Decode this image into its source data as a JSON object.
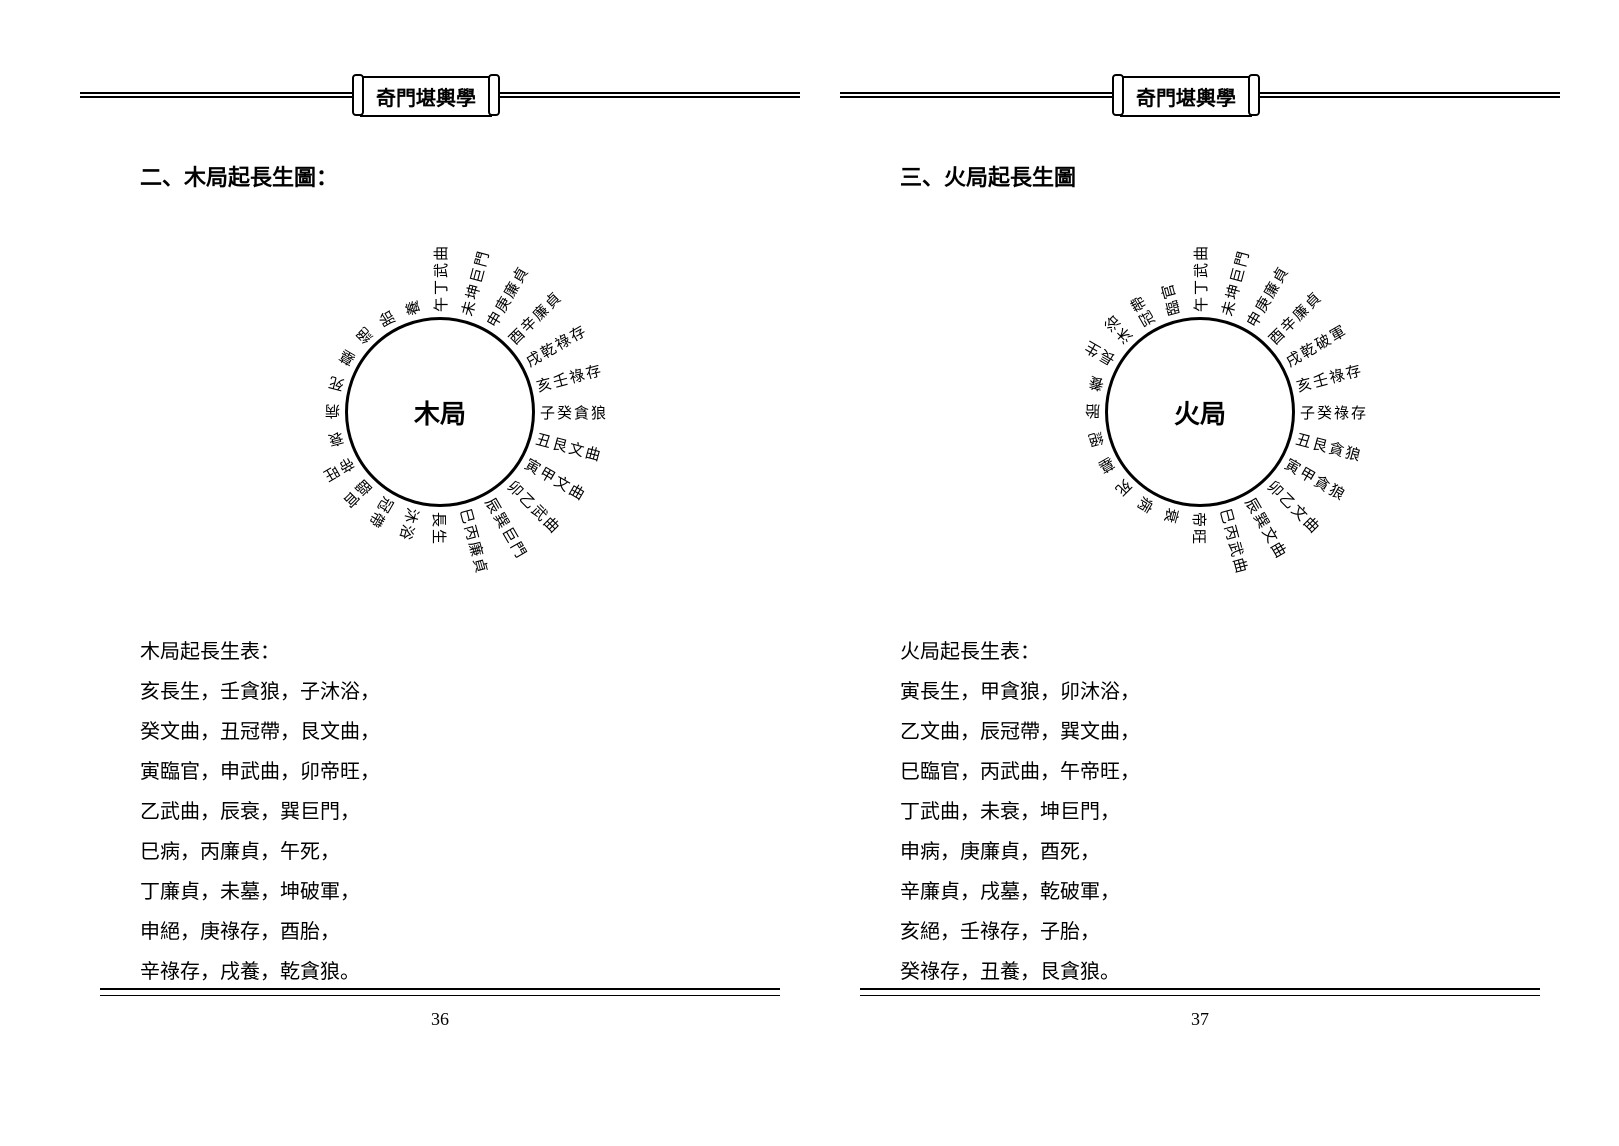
{
  "book_title": "奇門堪輿學",
  "left": {
    "section_title": "二、木局起長生圖：",
    "center_label": "木局",
    "page_number": "36",
    "spokes": [
      "午丁武曲",
      "未坤巨門",
      "申庚廉貞",
      "酉辛廉貞",
      "戌乾祿存",
      "亥壬祿存",
      "子癸貪狼",
      "丑艮文曲",
      "寅甲文曲",
      "卯乙武曲",
      "辰巽巨門",
      "巳丙廉貞",
      "長生",
      "沐浴",
      "冠帶",
      "臨官",
      "帝旺",
      "衰",
      "病",
      "死",
      "墓",
      "絕",
      "胎",
      "養"
    ],
    "table_title": "木局起長生表：",
    "table_lines": [
      "亥長生，壬貪狼，子沐浴，",
      "癸文曲，丑冠帶，艮文曲，",
      "寅臨官，申武曲，卯帝旺，",
      "乙武曲，辰衰，巽巨門，",
      "巳病，丙廉貞，午死，",
      "丁廉貞，未墓，坤破軍，",
      "申絕，庚祿存，酉胎，",
      "辛祿存，戌養，乾貪狼。"
    ]
  },
  "right": {
    "section_title": "三、火局起長生圖",
    "center_label": "火局",
    "page_number": "37",
    "spokes": [
      "午丁武曲",
      "未坤巨門",
      "申庚廉貞",
      "酉辛廉貞",
      "戌乾破軍",
      "亥壬祿存",
      "子癸祿存",
      "丑艮貪狼",
      "寅甲貪狼",
      "卯乙文曲",
      "辰巽文曲",
      "巳丙武曲",
      "帝旺",
      "衰",
      "病",
      "死",
      "墓",
      "絕",
      "胎",
      "養",
      "長生",
      "沐浴",
      "冠帶",
      "臨官"
    ],
    "table_title": "火局起長生表：",
    "table_lines": [
      "寅長生，甲貪狼，卯沐浴，",
      "乙文曲，辰冠帶，巽文曲，",
      "巳臨官，丙武曲，午帝旺，",
      "丁武曲，未衰，坤巨門，",
      "申病，庚廉貞，酉死，",
      "辛廉貞，戌墓，乾破軍，",
      "亥絕，壬祿存，子胎，",
      "癸祿存，丑養，艮貪狼。"
    ]
  }
}
